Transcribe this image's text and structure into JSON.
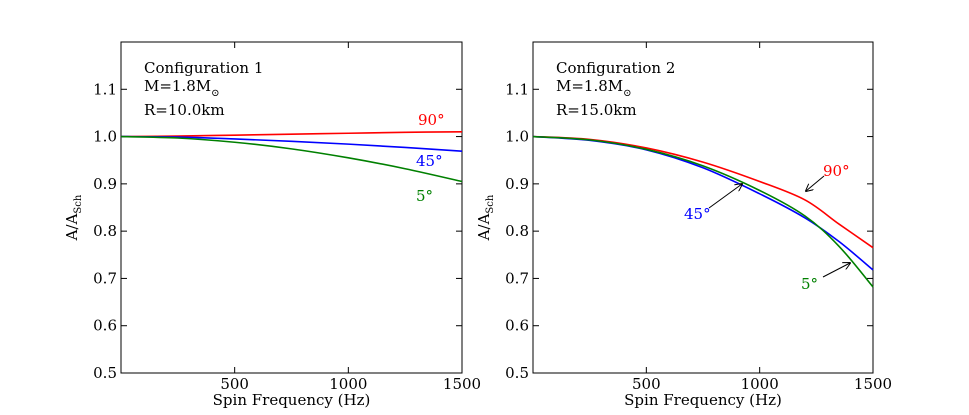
{
  "chart_data": [
    {
      "type": "line",
      "panel": "left",
      "annotation": [
        "Configuration 1",
        "M=1.8M",
        "R=10.0km"
      ],
      "xlabel": "Spin Frequency (Hz)",
      "ylabel": "A/A",
      "ylabel_sub": "Sch",
      "xlim": [
        0,
        1500
      ],
      "ylim": [
        0.5,
        1.2
      ],
      "xticks": [
        500,
        1000,
        1500
      ],
      "yticks": [
        0.5,
        0.6,
        0.7,
        0.8,
        0.9,
        1.0,
        1.1
      ],
      "ytick_labels": [
        "0.5",
        "0.6",
        "0.7",
        "0.8",
        "0.9",
        "1.0",
        "1.1"
      ],
      "series": [
        {
          "name": "90°",
          "color": "#ff0000",
          "x": [
            0,
            250,
            500,
            750,
            1000,
            1250,
            1500
          ],
          "y": [
            1.0,
            1.001,
            1.003,
            1.005,
            1.007,
            1.009,
            1.01
          ]
        },
        {
          "name": "45°",
          "color": "#0000ff",
          "x": [
            0,
            250,
            500,
            750,
            1000,
            1250,
            1500
          ],
          "y": [
            1.0,
            0.999,
            0.995,
            0.99,
            0.984,
            0.977,
            0.969
          ]
        },
        {
          "name": "5°",
          "color": "#008000",
          "x": [
            0,
            250,
            500,
            750,
            1000,
            1250,
            1500
          ],
          "y": [
            1.0,
            0.997,
            0.988,
            0.974,
            0.955,
            0.932,
            0.905
          ]
        }
      ]
    },
    {
      "type": "line",
      "panel": "right",
      "annotation": [
        "Configuration 2",
        "M=1.8M",
        "R=15.0km"
      ],
      "xlabel": "Spin Frequency (Hz)",
      "ylabel": "A/A",
      "ylabel_sub": "Sch",
      "xlim": [
        0,
        1500
      ],
      "ylim": [
        0.5,
        1.2
      ],
      "xticks": [
        500,
        1000,
        1500
      ],
      "yticks": [
        0.5,
        0.6,
        0.7,
        0.8,
        0.9,
        1.0,
        1.1
      ],
      "ytick_labels": [
        "0.5",
        "0.6",
        "0.7",
        "0.8",
        "0.9",
        "1.0",
        "1.1"
      ],
      "series": [
        {
          "name": "90°",
          "color": "#ff0000",
          "x": [
            0,
            250,
            500,
            750,
            1000,
            1200,
            1350,
            1500
          ],
          "y": [
            1.0,
            0.994,
            0.976,
            0.946,
            0.905,
            0.866,
            0.815,
            0.765
          ]
        },
        {
          "name": "45°",
          "color": "#0000ff",
          "x": [
            0,
            250,
            500,
            750,
            1000,
            1200,
            1350,
            1500
          ],
          "y": [
            1.0,
            0.992,
            0.972,
            0.934,
            0.879,
            0.828,
            0.778,
            0.718
          ]
        },
        {
          "name": "5°",
          "color": "#008000",
          "x": [
            0,
            250,
            500,
            750,
            1000,
            1200,
            1350,
            1500
          ],
          "y": [
            1.0,
            0.993,
            0.973,
            0.938,
            0.886,
            0.832,
            0.768,
            0.682
          ]
        }
      ]
    }
  ],
  "text": {
    "sun_symbol": "⊙"
  }
}
